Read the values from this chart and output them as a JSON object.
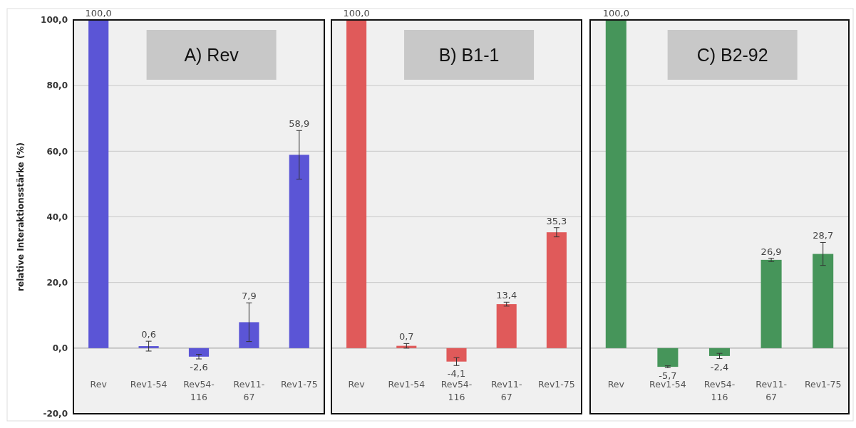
{
  "chart_data": [
    {
      "type": "bar",
      "title": "A) Rev",
      "ylabel": "relative Interaktionsstärke (%)",
      "categories": [
        "Rev",
        "Rev1-54",
        "Rev54-116",
        "Rev11-67",
        "Rev1-75"
      ],
      "values": [
        100.0,
        0.6,
        -2.6,
        7.9,
        58.9
      ],
      "errors": [
        null,
        1.5,
        0.7,
        5.9,
        7.4
      ],
      "value_labels": [
        "100,0",
        "0,6",
        "-2,6",
        "7,9",
        "58,9"
      ],
      "color": "#5b55d6",
      "ylim": [
        -20,
        100
      ],
      "yticks": [
        {
          "value": -20,
          "label": "-20,0"
        },
        {
          "value": 0,
          "label": "0,0"
        },
        {
          "value": 20,
          "label": "20,0"
        },
        {
          "value": 40,
          "label": "40,0"
        },
        {
          "value": 60,
          "label": "60,0"
        },
        {
          "value": 80,
          "label": "80,0"
        },
        {
          "value": 100,
          "label": "100,0"
        }
      ],
      "grid": "y"
    },
    {
      "type": "bar",
      "title": "B) B1-1",
      "categories": [
        "Rev",
        "Rev1-54",
        "Rev54-116",
        "Rev11-67",
        "Rev1-75"
      ],
      "values": [
        100.0,
        0.7,
        -4.1,
        13.4,
        35.3
      ],
      "errors": [
        null,
        0.7,
        1.2,
        0.6,
        1.4
      ],
      "value_labels": [
        "100,0",
        "0,7",
        "-4,1",
        "13,4",
        "35,3"
      ],
      "color": "#e05a5a",
      "ylim": [
        -20,
        100
      ],
      "yticks": [
        {
          "value": -20,
          "label": null
        },
        {
          "value": 0,
          "label": null
        },
        {
          "value": 20,
          "label": null
        },
        {
          "value": 40,
          "label": null
        },
        {
          "value": 60,
          "label": null
        },
        {
          "value": 80,
          "label": null
        },
        {
          "value": 100,
          "label": null
        }
      ],
      "grid": "y",
      "tick_labels": "x"
    },
    {
      "type": "bar",
      "title": "C) B2-92",
      "categories": [
        "Rev",
        "Rev1-54",
        "Rev54-116",
        "Rev11-67",
        "Rev1-75"
      ],
      "values": [
        100.0,
        -5.7,
        -2.4,
        26.9,
        28.7
      ],
      "errors": [
        null,
        0.3,
        0.8,
        0.5,
        3.5
      ],
      "value_labels": [
        "100,0",
        "-5,7",
        "-2,4",
        "26,9",
        "28,7"
      ],
      "color": "#46955a",
      "ylim": [
        -20,
        100
      ],
      "yticks": [
        {
          "value": -20,
          "label": null
        },
        {
          "value": 0,
          "label": null
        },
        {
          "value": 20,
          "label": null
        },
        {
          "value": 40,
          "label": null
        },
        {
          "value": 60,
          "label": null
        },
        {
          "value": 80,
          "label": null
        },
        {
          "value": 100,
          "label": null
        }
      ],
      "grid": "y",
      "tick_labels": "x"
    }
  ]
}
